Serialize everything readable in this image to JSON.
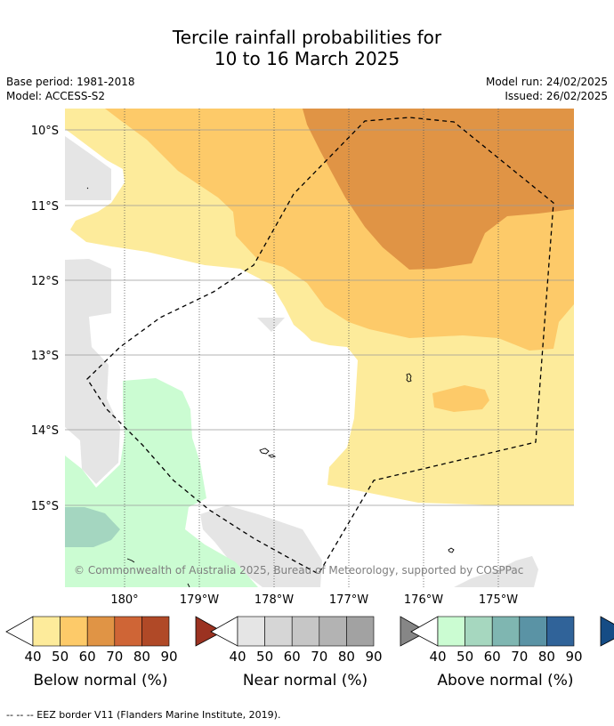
{
  "title": {
    "line1": "Tercile rainfall probabilities for",
    "line2": "10 to 16 March 2025"
  },
  "meta": {
    "base_period": "Base period: 1981-2018",
    "model": "Model: ACCESS-S2",
    "model_run": "Model run: 24/02/2025",
    "issued": "Issued: 26/02/2025"
  },
  "map": {
    "lat_labels": [
      "10°S",
      "11°S",
      "12°S",
      "13°S",
      "14°S",
      "15°S"
    ],
    "lon_labels": [
      "180°",
      "179°W",
      "178°W",
      "177°W",
      "176°W",
      "175°W"
    ],
    "copyright": "© Commonwealth of Australia 2025, Bureau of Meteorology, supported by COSPPac",
    "colors": {
      "below_40": "#fdeb9b",
      "below_50": "#fdca69",
      "below_60": "#e09445",
      "near_40": "#e5e5e5",
      "above_40": "#cbfcd2",
      "above_50": "#a4d6c0",
      "coast": "#000000",
      "gridline": "#9a9a9a"
    }
  },
  "colorbars": [
    {
      "title": "Below normal (%)",
      "ticks": [
        "40",
        "50",
        "60",
        "70",
        "80",
        "90"
      ],
      "colors": [
        "#fdeb9b",
        "#fdca69",
        "#e09445",
        "#cf6536",
        "#b04927",
        "#9b3221"
      ]
    },
    {
      "title": "Near normal (%)",
      "ticks": [
        "40",
        "50",
        "60",
        "70",
        "80",
        "90"
      ],
      "colors": [
        "#e5e5e5",
        "#d6d6d6",
        "#c6c6c6",
        "#b3b3b3",
        "#a2a2a2",
        "#868686"
      ]
    },
    {
      "title": "Above normal (%)",
      "ticks": [
        "40",
        "50",
        "60",
        "70",
        "80",
        "90"
      ],
      "colors": [
        "#cbfcd2",
        "#a6d7bf",
        "#7fb6b1",
        "#5a93a5",
        "#306399",
        "#154c85"
      ]
    }
  ],
  "footnote": "--  --  -- EEZ border V11 (Flanders Marine Institute, 2019)."
}
